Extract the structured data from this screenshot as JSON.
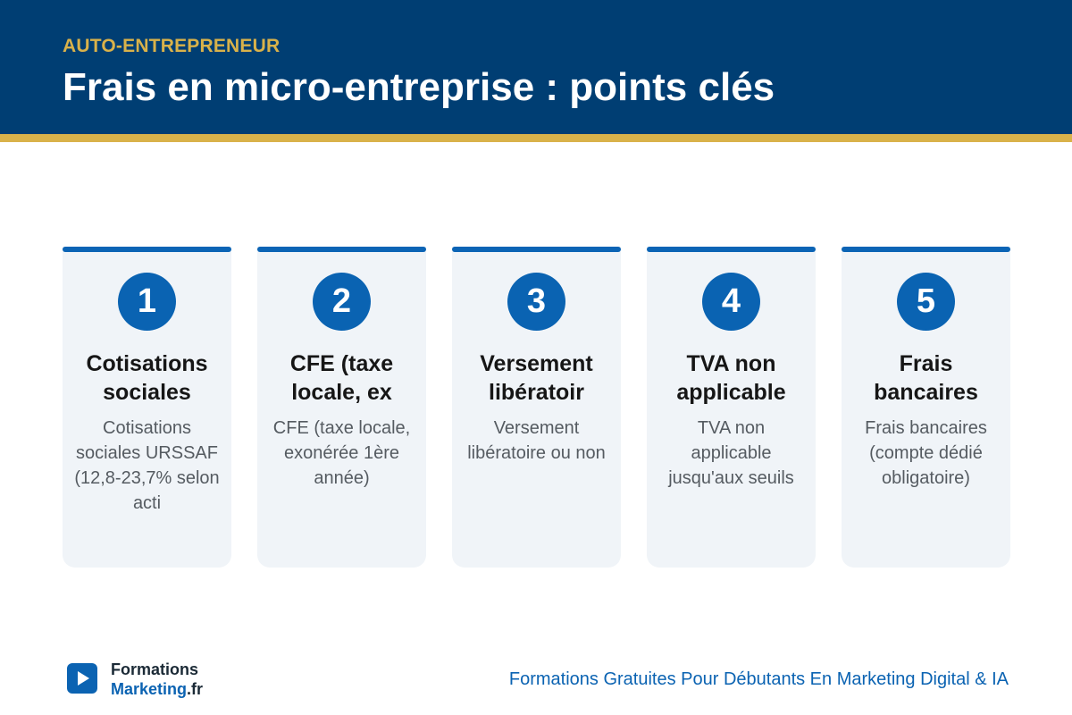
{
  "header": {
    "kicker": "AUTO-ENTREPRENEUR",
    "title": "Frais en micro-entreprise : points clés"
  },
  "cards": [
    {
      "number": "1",
      "title": "Cotisations sociales",
      "description": "Cotisations sociales URSSAF (12,8-23,7% selon acti"
    },
    {
      "number": "2",
      "title": "CFE (taxe locale, ex",
      "description": "CFE (taxe locale, exonérée 1ère année)"
    },
    {
      "number": "3",
      "title": "Versement libératoir",
      "description": "Versement libératoire ou non"
    },
    {
      "number": "4",
      "title": "TVA non applicable",
      "description": "TVA non applicable jusqu'aux seuils"
    },
    {
      "number": "5",
      "title": "Frais bancaires",
      "description": "Frais bancaires (compte dédié obligatoire)"
    }
  ],
  "footer": {
    "logo_icon": "play-icon",
    "brand_line1": "Formations",
    "brand_line2_main": "Marketing",
    "brand_line2_tld": ".fr",
    "tagline": "Formations Gratuites Pour Débutants En Marketing Digital & IA"
  },
  "colors": {
    "header_bg": "#003e73",
    "accent_gold": "#d9b24a",
    "brand_blue": "#0b63b2",
    "card_bg": "#f0f4f8"
  }
}
